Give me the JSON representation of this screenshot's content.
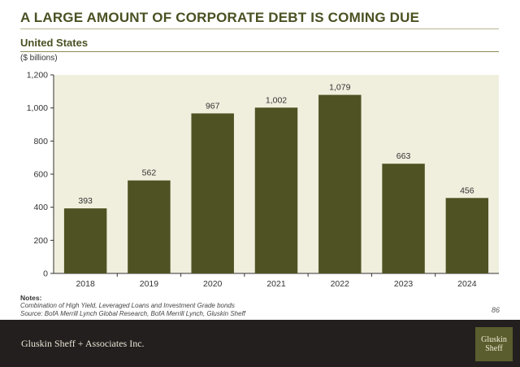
{
  "header": {
    "title": "A LARGE AMOUNT OF CORPORATE DEBT IS COMING DUE",
    "subtitle": "United States",
    "units": "($ billions)"
  },
  "notes": {
    "heading": "Notes:",
    "line1": "Combination of High Yield, Leveraged Loans and Investment Grade bonds",
    "line2": "Source: BofA Merrill Lynch Global Research, BofA Merrill Lynch, Gluskin Sheff"
  },
  "page_number": "86",
  "footer": {
    "firm_name": "Gluskin Sheff + Associates Inc.",
    "logo_line1": "Gluskin",
    "logo_line2": "Sheff"
  },
  "colors": {
    "bar": "#4f5323",
    "plot_background": "#f0eedd",
    "title": "#4b5122",
    "footer_background": "#231f1f",
    "logo_background": "#5a5d2d"
  },
  "chart_data": {
    "type": "bar",
    "categories": [
      "2018",
      "2019",
      "2020",
      "2021",
      "2022",
      "2023",
      "2024"
    ],
    "values": [
      393,
      562,
      967,
      1002,
      1079,
      663,
      456
    ],
    "value_labels": [
      "393",
      "562",
      "967",
      "1,002",
      "1,079",
      "663",
      "456"
    ],
    "ylim": [
      0,
      1200
    ],
    "yticks": [
      0,
      200,
      400,
      600,
      800,
      1000,
      1200
    ],
    "ytick_labels": [
      "0",
      "200",
      "400",
      "600",
      "800",
      "1,000",
      "1,200"
    ],
    "grid": false,
    "legend": "none"
  }
}
